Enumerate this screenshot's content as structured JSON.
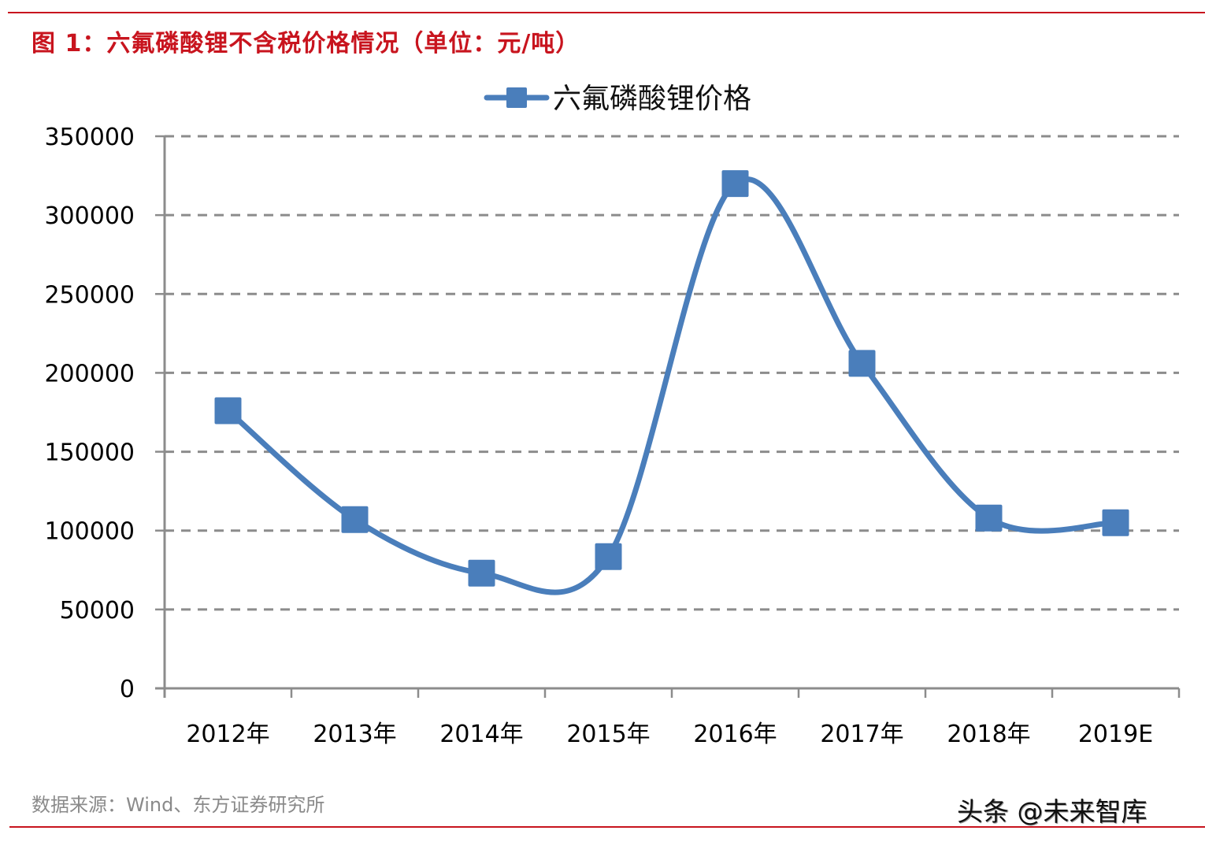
{
  "header": {
    "figure_title": "图 1：六氟磷酸锂不含税价格情况（单位：元/吨）"
  },
  "footer": {
    "source": "数据来源：Wind、东方证券研究所",
    "watermark": "头条 @未来智库"
  },
  "colors": {
    "accent_red": "#c8141e",
    "series_blue": "#4a7ebb",
    "grid_gray": "#8c8c8c"
  },
  "chart_data": {
    "type": "line",
    "title": "图 1：六氟磷酸锂不含税价格情况（单位：元/吨）",
    "xlabel": "",
    "ylabel": "元/吨",
    "categories": [
      "2012年",
      "2013年",
      "2014年",
      "2015年",
      "2016年",
      "2017年",
      "2018年",
      "2019E"
    ],
    "series": [
      {
        "name": "六氟磷酸锂价格",
        "values": [
          176000,
          107000,
          73000,
          83500,
          320000,
          206000,
          108000,
          105000
        ],
        "color": "#4a7ebb",
        "marker": "square",
        "smooth": true
      }
    ],
    "ylim": [
      0,
      350000
    ],
    "yticks": [
      0,
      50000,
      100000,
      150000,
      200000,
      250000,
      300000,
      350000
    ],
    "ytick_labels": [
      "0",
      "50000",
      "100000",
      "150000",
      "200000",
      "250000",
      "300000",
      "350000"
    ],
    "grid": "horizontal dashed",
    "legend_position": "top"
  }
}
